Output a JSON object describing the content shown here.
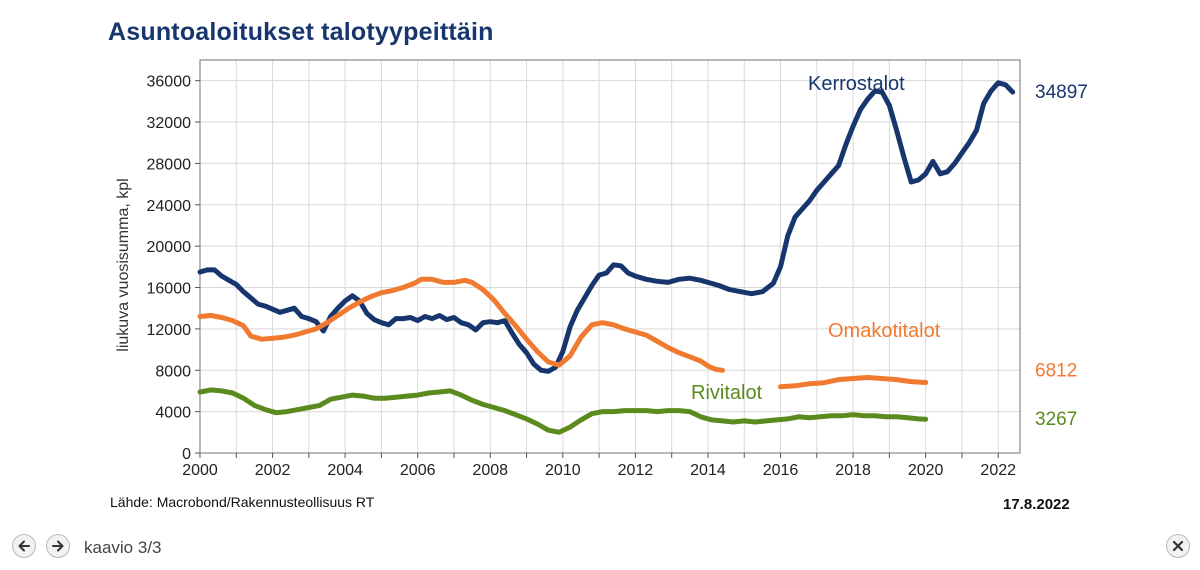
{
  "chart_data": {
    "type": "line",
    "title": "Asuntoaloitukset talotyypeittäin",
    "ylabel": "liukuva vuosisumma, kpl",
    "xlabel": "",
    "xlim": [
      2000,
      2022.6
    ],
    "ylim": [
      0,
      38000
    ],
    "x_ticks": [
      2000,
      2002,
      2004,
      2006,
      2008,
      2010,
      2012,
      2014,
      2016,
      2018,
      2020,
      2022
    ],
    "y_ticks": [
      0,
      4000,
      8000,
      12000,
      16000,
      20000,
      24000,
      28000,
      32000,
      36000
    ],
    "y_tick_labels": [
      "0",
      "4000",
      "8000",
      "12000",
      "16000",
      "20000",
      "24000",
      "28000",
      "32000",
      "36000"
    ],
    "grid": true,
    "series": [
      {
        "name": "Kerrostalot",
        "color": "#17366e",
        "end_label": "34897",
        "points": [
          [
            2000.0,
            17500
          ],
          [
            2000.2,
            17700
          ],
          [
            2000.4,
            17700
          ],
          [
            2000.6,
            17100
          ],
          [
            2000.8,
            16700
          ],
          [
            2001.0,
            16300
          ],
          [
            2001.2,
            15600
          ],
          [
            2001.4,
            15000
          ],
          [
            2001.6,
            14400
          ],
          [
            2001.8,
            14200
          ],
          [
            2002.0,
            13900
          ],
          [
            2002.2,
            13600
          ],
          [
            2002.4,
            13800
          ],
          [
            2002.6,
            14000
          ],
          [
            2002.8,
            13200
          ],
          [
            2003.0,
            13000
          ],
          [
            2003.2,
            12700
          ],
          [
            2003.4,
            11800
          ],
          [
            2003.6,
            13200
          ],
          [
            2003.8,
            14000
          ],
          [
            2004.0,
            14700
          ],
          [
            2004.2,
            15200
          ],
          [
            2004.4,
            14700
          ],
          [
            2004.6,
            13500
          ],
          [
            2004.8,
            12900
          ],
          [
            2005.0,
            12600
          ],
          [
            2005.2,
            12400
          ],
          [
            2005.4,
            13000
          ],
          [
            2005.6,
            13000
          ],
          [
            2005.8,
            13100
          ],
          [
            2006.0,
            12800
          ],
          [
            2006.2,
            13200
          ],
          [
            2006.4,
            13000
          ],
          [
            2006.6,
            13300
          ],
          [
            2006.8,
            12900
          ],
          [
            2007.0,
            13100
          ],
          [
            2007.2,
            12600
          ],
          [
            2007.4,
            12400
          ],
          [
            2007.6,
            11900
          ],
          [
            2007.8,
            12600
          ],
          [
            2008.0,
            12700
          ],
          [
            2008.2,
            12600
          ],
          [
            2008.4,
            12800
          ],
          [
            2008.6,
            11600
          ],
          [
            2008.8,
            10500
          ],
          [
            2009.0,
            9700
          ],
          [
            2009.2,
            8600
          ],
          [
            2009.4,
            8000
          ],
          [
            2009.6,
            7900
          ],
          [
            2009.8,
            8300
          ],
          [
            2010.0,
            9800
          ],
          [
            2010.2,
            12200
          ],
          [
            2010.4,
            13800
          ],
          [
            2010.6,
            15000
          ],
          [
            2010.8,
            16200
          ],
          [
            2011.0,
            17200
          ],
          [
            2011.2,
            17400
          ],
          [
            2011.4,
            18200
          ],
          [
            2011.6,
            18100
          ],
          [
            2011.8,
            17400
          ],
          [
            2012.0,
            17100
          ],
          [
            2012.3,
            16800
          ],
          [
            2012.6,
            16600
          ],
          [
            2012.9,
            16500
          ],
          [
            2013.2,
            16800
          ],
          [
            2013.5,
            16900
          ],
          [
            2013.8,
            16700
          ],
          [
            2014.0,
            16500
          ],
          [
            2014.3,
            16200
          ],
          [
            2014.6,
            15800
          ],
          [
            2014.9,
            15600
          ],
          [
            2015.2,
            15400
          ],
          [
            2015.5,
            15600
          ],
          [
            2015.8,
            16400
          ],
          [
            2016.0,
            18000
          ],
          [
            2016.2,
            21000
          ],
          [
            2016.4,
            22800
          ],
          [
            2016.6,
            23600
          ],
          [
            2016.8,
            24400
          ],
          [
            2017.0,
            25400
          ],
          [
            2017.2,
            26200
          ],
          [
            2017.4,
            27000
          ],
          [
            2017.6,
            27800
          ],
          [
            2017.8,
            29800
          ],
          [
            2018.0,
            31600
          ],
          [
            2018.2,
            33200
          ],
          [
            2018.4,
            34200
          ],
          [
            2018.6,
            35000
          ],
          [
            2018.8,
            34900
          ],
          [
            2019.0,
            33600
          ],
          [
            2019.2,
            31200
          ],
          [
            2019.4,
            28600
          ],
          [
            2019.6,
            26200
          ],
          [
            2019.8,
            26400
          ],
          [
            2020.0,
            27000
          ],
          [
            2020.2,
            28200
          ],
          [
            2020.4,
            27000
          ],
          [
            2020.6,
            27200
          ],
          [
            2020.8,
            28000
          ],
          [
            2021.0,
            29000
          ],
          [
            2021.2,
            30000
          ],
          [
            2021.4,
            31200
          ],
          [
            2021.6,
            33800
          ],
          [
            2021.8,
            35000
          ],
          [
            2022.0,
            35800
          ],
          [
            2022.2,
            35600
          ],
          [
            2022.4,
            34897
          ]
        ]
      },
      {
        "name": "Omakotitalot",
        "color": "#f07a30",
        "end_label": "6812",
        "points": [
          [
            2000.0,
            13200
          ],
          [
            2000.3,
            13300
          ],
          [
            2000.6,
            13100
          ],
          [
            2000.9,
            12800
          ],
          [
            2001.2,
            12300
          ],
          [
            2001.4,
            11300
          ],
          [
            2001.7,
            11000
          ],
          [
            2002.0,
            11100
          ],
          [
            2002.3,
            11200
          ],
          [
            2002.6,
            11400
          ],
          [
            2002.9,
            11700
          ],
          [
            2003.2,
            12000
          ],
          [
            2003.5,
            12600
          ],
          [
            2003.8,
            13300
          ],
          [
            2004.1,
            14000
          ],
          [
            2004.4,
            14600
          ],
          [
            2004.7,
            15100
          ],
          [
            2005.0,
            15500
          ],
          [
            2005.3,
            15700
          ],
          [
            2005.6,
            16000
          ],
          [
            2005.9,
            16400
          ],
          [
            2006.1,
            16800
          ],
          [
            2006.4,
            16800
          ],
          [
            2006.7,
            16500
          ],
          [
            2007.0,
            16500
          ],
          [
            2007.3,
            16700
          ],
          [
            2007.5,
            16500
          ],
          [
            2007.8,
            15800
          ],
          [
            2008.1,
            14800
          ],
          [
            2008.4,
            13500
          ],
          [
            2008.7,
            12300
          ],
          [
            2009.0,
            11000
          ],
          [
            2009.3,
            9800
          ],
          [
            2009.6,
            8800
          ],
          [
            2009.9,
            8500
          ],
          [
            2010.2,
            9400
          ],
          [
            2010.5,
            11200
          ],
          [
            2010.8,
            12400
          ],
          [
            2011.1,
            12600
          ],
          [
            2011.4,
            12400
          ],
          [
            2011.7,
            12000
          ],
          [
            2012.0,
            11700
          ],
          [
            2012.3,
            11400
          ],
          [
            2012.6,
            10800
          ],
          [
            2012.9,
            10200
          ],
          [
            2013.2,
            9700
          ],
          [
            2013.5,
            9300
          ],
          [
            2013.8,
            8900
          ],
          [
            2014.0,
            8400
          ],
          [
            2014.2,
            8100
          ],
          [
            2014.4,
            8000
          ]
        ]
      },
      {
        "name": "Omakotitalot",
        "color": "#f07a30",
        "points": [
          [
            2016.0,
            6400
          ],
          [
            2016.4,
            6500
          ],
          [
            2016.8,
            6700
          ],
          [
            2017.2,
            6800
          ],
          [
            2017.6,
            7100
          ],
          [
            2018.0,
            7200
          ],
          [
            2018.4,
            7300
          ],
          [
            2018.8,
            7200
          ],
          [
            2019.2,
            7100
          ],
          [
            2019.6,
            6900
          ],
          [
            2020.0,
            6812
          ]
        ]
      },
      {
        "name": "Rivitalot",
        "color": "#5b8a1e",
        "end_label": "3267",
        "points": [
          [
            2000.0,
            5900
          ],
          [
            2000.3,
            6100
          ],
          [
            2000.6,
            6000
          ],
          [
            2000.9,
            5800
          ],
          [
            2001.2,
            5300
          ],
          [
            2001.5,
            4600
          ],
          [
            2001.8,
            4200
          ],
          [
            2002.1,
            3900
          ],
          [
            2002.4,
            4000
          ],
          [
            2002.7,
            4200
          ],
          [
            2003.0,
            4400
          ],
          [
            2003.3,
            4600
          ],
          [
            2003.6,
            5200
          ],
          [
            2003.9,
            5400
          ],
          [
            2004.2,
            5600
          ],
          [
            2004.5,
            5500
          ],
          [
            2004.8,
            5300
          ],
          [
            2005.1,
            5300
          ],
          [
            2005.4,
            5400
          ],
          [
            2005.7,
            5500
          ],
          [
            2006.0,
            5600
          ],
          [
            2006.3,
            5800
          ],
          [
            2006.6,
            5900
          ],
          [
            2006.9,
            6000
          ],
          [
            2007.2,
            5600
          ],
          [
            2007.5,
            5100
          ],
          [
            2007.8,
            4700
          ],
          [
            2008.1,
            4400
          ],
          [
            2008.4,
            4100
          ],
          [
            2008.7,
            3700
          ],
          [
            2009.0,
            3300
          ],
          [
            2009.3,
            2800
          ],
          [
            2009.6,
            2200
          ],
          [
            2009.9,
            2000
          ],
          [
            2010.2,
            2500
          ],
          [
            2010.5,
            3200
          ],
          [
            2010.8,
            3800
          ],
          [
            2011.1,
            4000
          ],
          [
            2011.4,
            4000
          ],
          [
            2011.7,
            4100
          ],
          [
            2012.0,
            4100
          ],
          [
            2012.3,
            4100
          ],
          [
            2012.6,
            4000
          ],
          [
            2012.9,
            4100
          ],
          [
            2013.2,
            4100
          ],
          [
            2013.5,
            4000
          ],
          [
            2013.8,
            3500
          ],
          [
            2014.1,
            3200
          ],
          [
            2014.4,
            3100
          ],
          [
            2014.7,
            3000
          ],
          [
            2015.0,
            3100
          ],
          [
            2015.3,
            3000
          ],
          [
            2015.6,
            3100
          ],
          [
            2015.9,
            3200
          ],
          [
            2016.2,
            3300
          ],
          [
            2016.5,
            3500
          ],
          [
            2016.8,
            3400
          ],
          [
            2017.1,
            3500
          ],
          [
            2017.4,
            3600
          ],
          [
            2017.7,
            3600
          ],
          [
            2018.0,
            3700
          ],
          [
            2018.3,
            3600
          ],
          [
            2018.6,
            3600
          ],
          [
            2018.9,
            3500
          ],
          [
            2019.2,
            3500
          ],
          [
            2019.5,
            3400
          ],
          [
            2019.8,
            3300
          ],
          [
            2020.0,
            3267
          ]
        ]
      }
    ],
    "series_labels": [
      {
        "text": "Kerrostalot",
        "color": "#17366e"
      },
      {
        "text": "Omakotitalot",
        "color": "#f07a30"
      },
      {
        "text": "Rivitalot",
        "color": "#5b8a1e"
      }
    ]
  },
  "source": "Lähde: Macrobond/Rakennusteollisuus RT",
  "date": "17.8.2022",
  "viewer": {
    "counter": "kaavio 3/3",
    "prev_icon": "arrow-left-icon",
    "next_icon": "arrow-right-icon",
    "close_icon": "close-icon"
  }
}
